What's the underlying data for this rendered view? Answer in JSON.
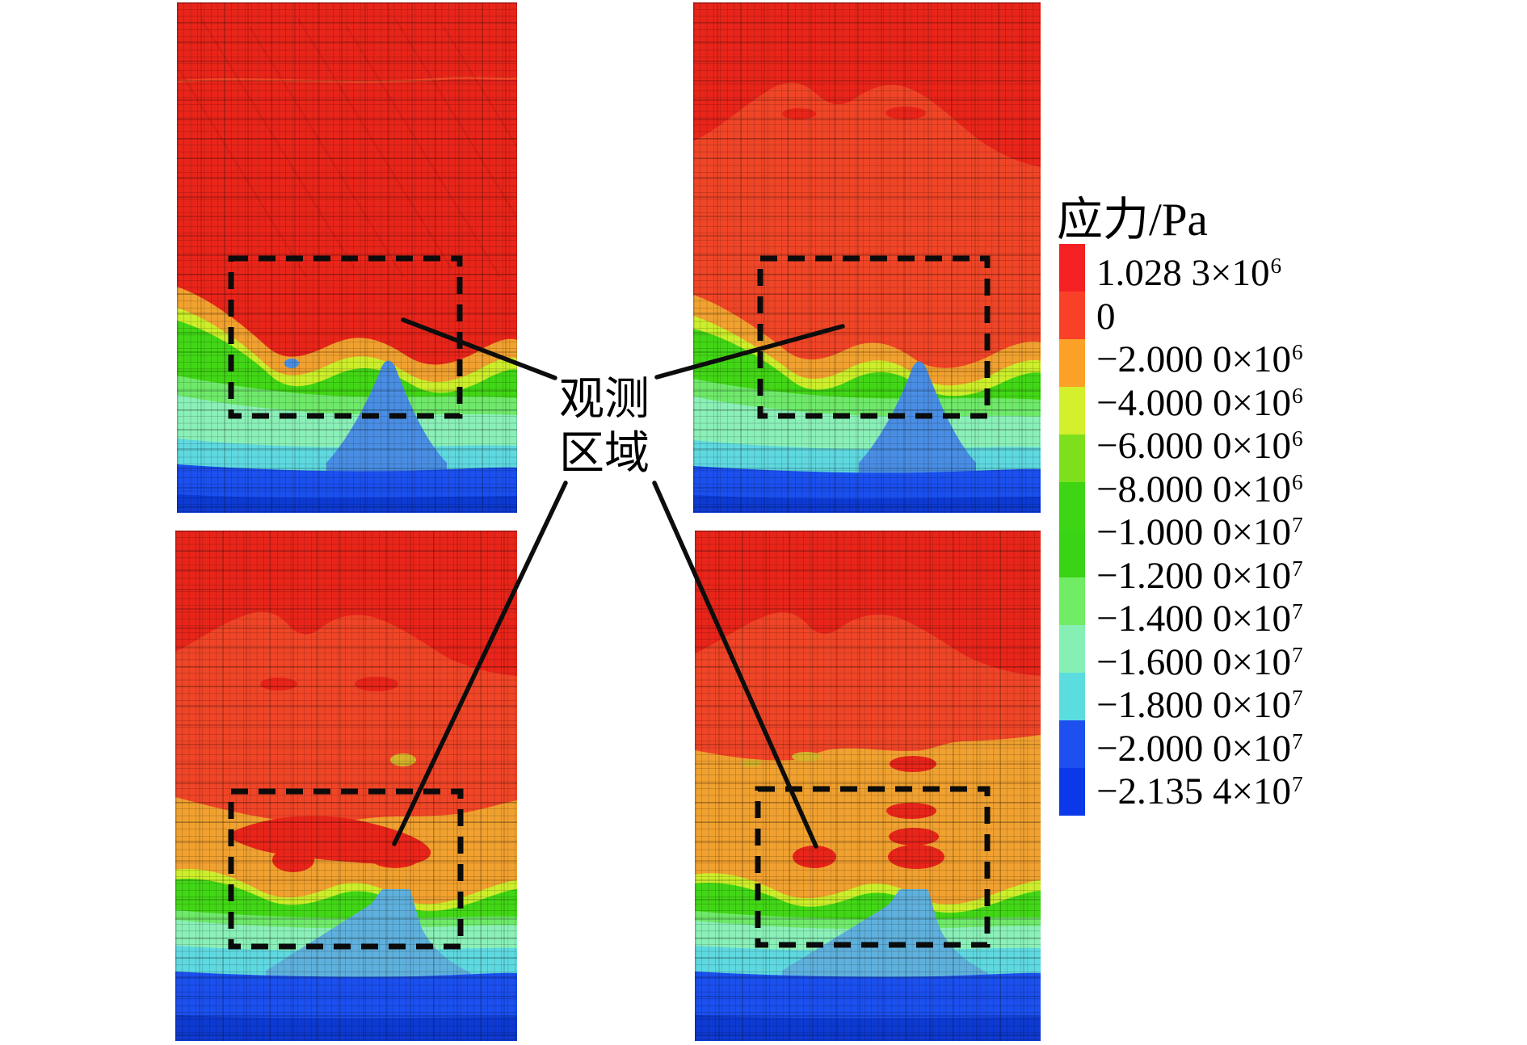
{
  "observation": {
    "line1": "观测",
    "line2": "区域",
    "combined": "观测区域"
  },
  "legend": {
    "title": "应力/Pa",
    "entries": [
      {
        "value": "1.028 3",
        "times": "×10",
        "exp": "6"
      },
      {
        "value": "0",
        "times": "",
        "exp": ""
      },
      {
        "value": "−2.000 0",
        "times": "×10",
        "exp": "6"
      },
      {
        "value": "−4.000 0",
        "times": "×10",
        "exp": "6"
      },
      {
        "value": "−6.000 0",
        "times": "×10",
        "exp": "6"
      },
      {
        "value": "−8.000 0",
        "times": "×10",
        "exp": "6"
      },
      {
        "value": "−1.000 0",
        "times": "×10",
        "exp": "7"
      },
      {
        "value": "−1.200 0",
        "times": "×10",
        "exp": "7"
      },
      {
        "value": "−1.400 0",
        "times": "×10",
        "exp": "7"
      },
      {
        "value": "−1.600 0",
        "times": "×10",
        "exp": "7"
      },
      {
        "value": "−1.800 0",
        "times": "×10",
        "exp": "7"
      },
      {
        "value": "−2.000 0",
        "times": "×10",
        "exp": "7"
      },
      {
        "value": "−2.135 4",
        "times": "×10",
        "exp": "7"
      }
    ],
    "colors": [
      "#f52024",
      "#f94129",
      "#fba127",
      "#d4ef2c",
      "#7ee01d",
      "#3ed514",
      "#3bd316",
      "#70ec65",
      "#86f0b4",
      "#5bdde0",
      "#1d50ef",
      "#0b38e8"
    ]
  },
  "panel_colors": {
    "red_main": "#e9251a",
    "red_inner": "#f04527",
    "orange": "#f1a12f",
    "yellow_green": "#cdee2b",
    "green": "#42d716",
    "light_green": "#6fe96a",
    "mint": "#8af0b8",
    "cyan": "#5fd9e0",
    "peak_blue_top": "#4a8ee4",
    "peak_blue_bottom": "#5fb0dc",
    "blue": "#1b4fee",
    "dark_blue": "#0d3ad2",
    "dashed_box": "#0b0b0b",
    "pointer_line": "#0d0d0d"
  },
  "panels": [
    {
      "name": "top-left stress contour",
      "annotation": "观测区域"
    },
    {
      "name": "top-right stress contour",
      "annotation": "观测区域"
    },
    {
      "name": "bottom-left stress contour",
      "annotation": "观测区域"
    },
    {
      "name": "bottom-right stress contour",
      "annotation": "观测区域"
    }
  ],
  "chart_data": {
    "type": "heatmap",
    "title": "",
    "legend_title": "应力/Pa",
    "units": "Pa",
    "colorbar_tick_labels": [
      "1.028 3×10⁶",
      "0",
      "−2.000 0×10⁶",
      "−4.000 0×10⁶",
      "−6.000 0×10⁶",
      "−8.000 0×10⁶",
      "−1.000 0×10⁷",
      "−1.200 0×10⁷",
      "−1.400 0×10⁷",
      "−1.600 0×10⁷",
      "−1.800 0×10⁷",
      "−2.000 0×10⁷",
      "−2.135 4×10⁷"
    ],
    "colorbar_values_pa": [
      1028300,
      0,
      -2000000,
      -4000000,
      -6000000,
      -8000000,
      -10000000,
      -12000000,
      -14000000,
      -16000000,
      -18000000,
      -20000000,
      -21354000
    ],
    "colorbar_colors": [
      "#f52024",
      "#f94129",
      "#fba127",
      "#d4ef2c",
      "#7ee01d",
      "#3ed514",
      "#3bd316",
      "#70ec65",
      "#86f0b4",
      "#5bdde0",
      "#1d50ef",
      "#0b38e8"
    ],
    "layout": "2x2 finite-element stress contour panels, each with a dashed observation-area box; central label 观测区域 points to all four boxes; colorbar legend on the right",
    "value_range_pa": [
      -21354000,
      1028300
    ]
  }
}
